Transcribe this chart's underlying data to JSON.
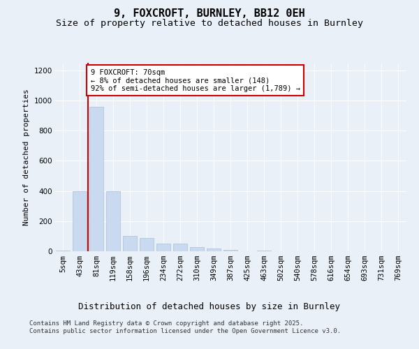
{
  "title1": "9, FOXCROFT, BURNLEY, BB12 0EH",
  "title2": "Size of property relative to detached houses in Burnley",
  "xlabel": "Distribution of detached houses by size in Burnley",
  "ylabel": "Number of detached properties",
  "footnote1": "Contains HM Land Registry data © Crown copyright and database right 2025.",
  "footnote2": "Contains public sector information licensed under the Open Government Licence v3.0.",
  "annotation_title": "9 FOXCROFT: 70sqm",
  "annotation_line1": "← 8% of detached houses are smaller (148)",
  "annotation_line2": "92% of semi-detached houses are larger (1,789) →",
  "bar_color": "#c9d9f0",
  "bar_edge_color": "#a8bfd8",
  "redline_color": "#cc0000",
  "annotation_box_edge": "#cc0000",
  "bg_color": "#eaf0f8",
  "plot_bg_color": "#eaf0f8",
  "categories": [
    "5sqm",
    "43sqm",
    "81sqm",
    "119sqm",
    "158sqm",
    "196sqm",
    "234sqm",
    "272sqm",
    "310sqm",
    "349sqm",
    "387sqm",
    "425sqm",
    "463sqm",
    "502sqm",
    "540sqm",
    "578sqm",
    "616sqm",
    "654sqm",
    "693sqm",
    "731sqm",
    "769sqm"
  ],
  "values": [
    5,
    400,
    960,
    400,
    100,
    90,
    50,
    50,
    30,
    18,
    10,
    0,
    4,
    0,
    0,
    0,
    0,
    0,
    0,
    0,
    0
  ],
  "redline_x": 1.5,
  "ylim": [
    0,
    1250
  ],
  "yticks": [
    0,
    200,
    400,
    600,
    800,
    1000,
    1200
  ],
  "title1_fontsize": 11,
  "title2_fontsize": 9.5,
  "xlabel_fontsize": 9,
  "ylabel_fontsize": 8,
  "tick_fontsize": 7.5,
  "annotation_fontsize": 7.5,
  "footnote_fontsize": 6.5
}
